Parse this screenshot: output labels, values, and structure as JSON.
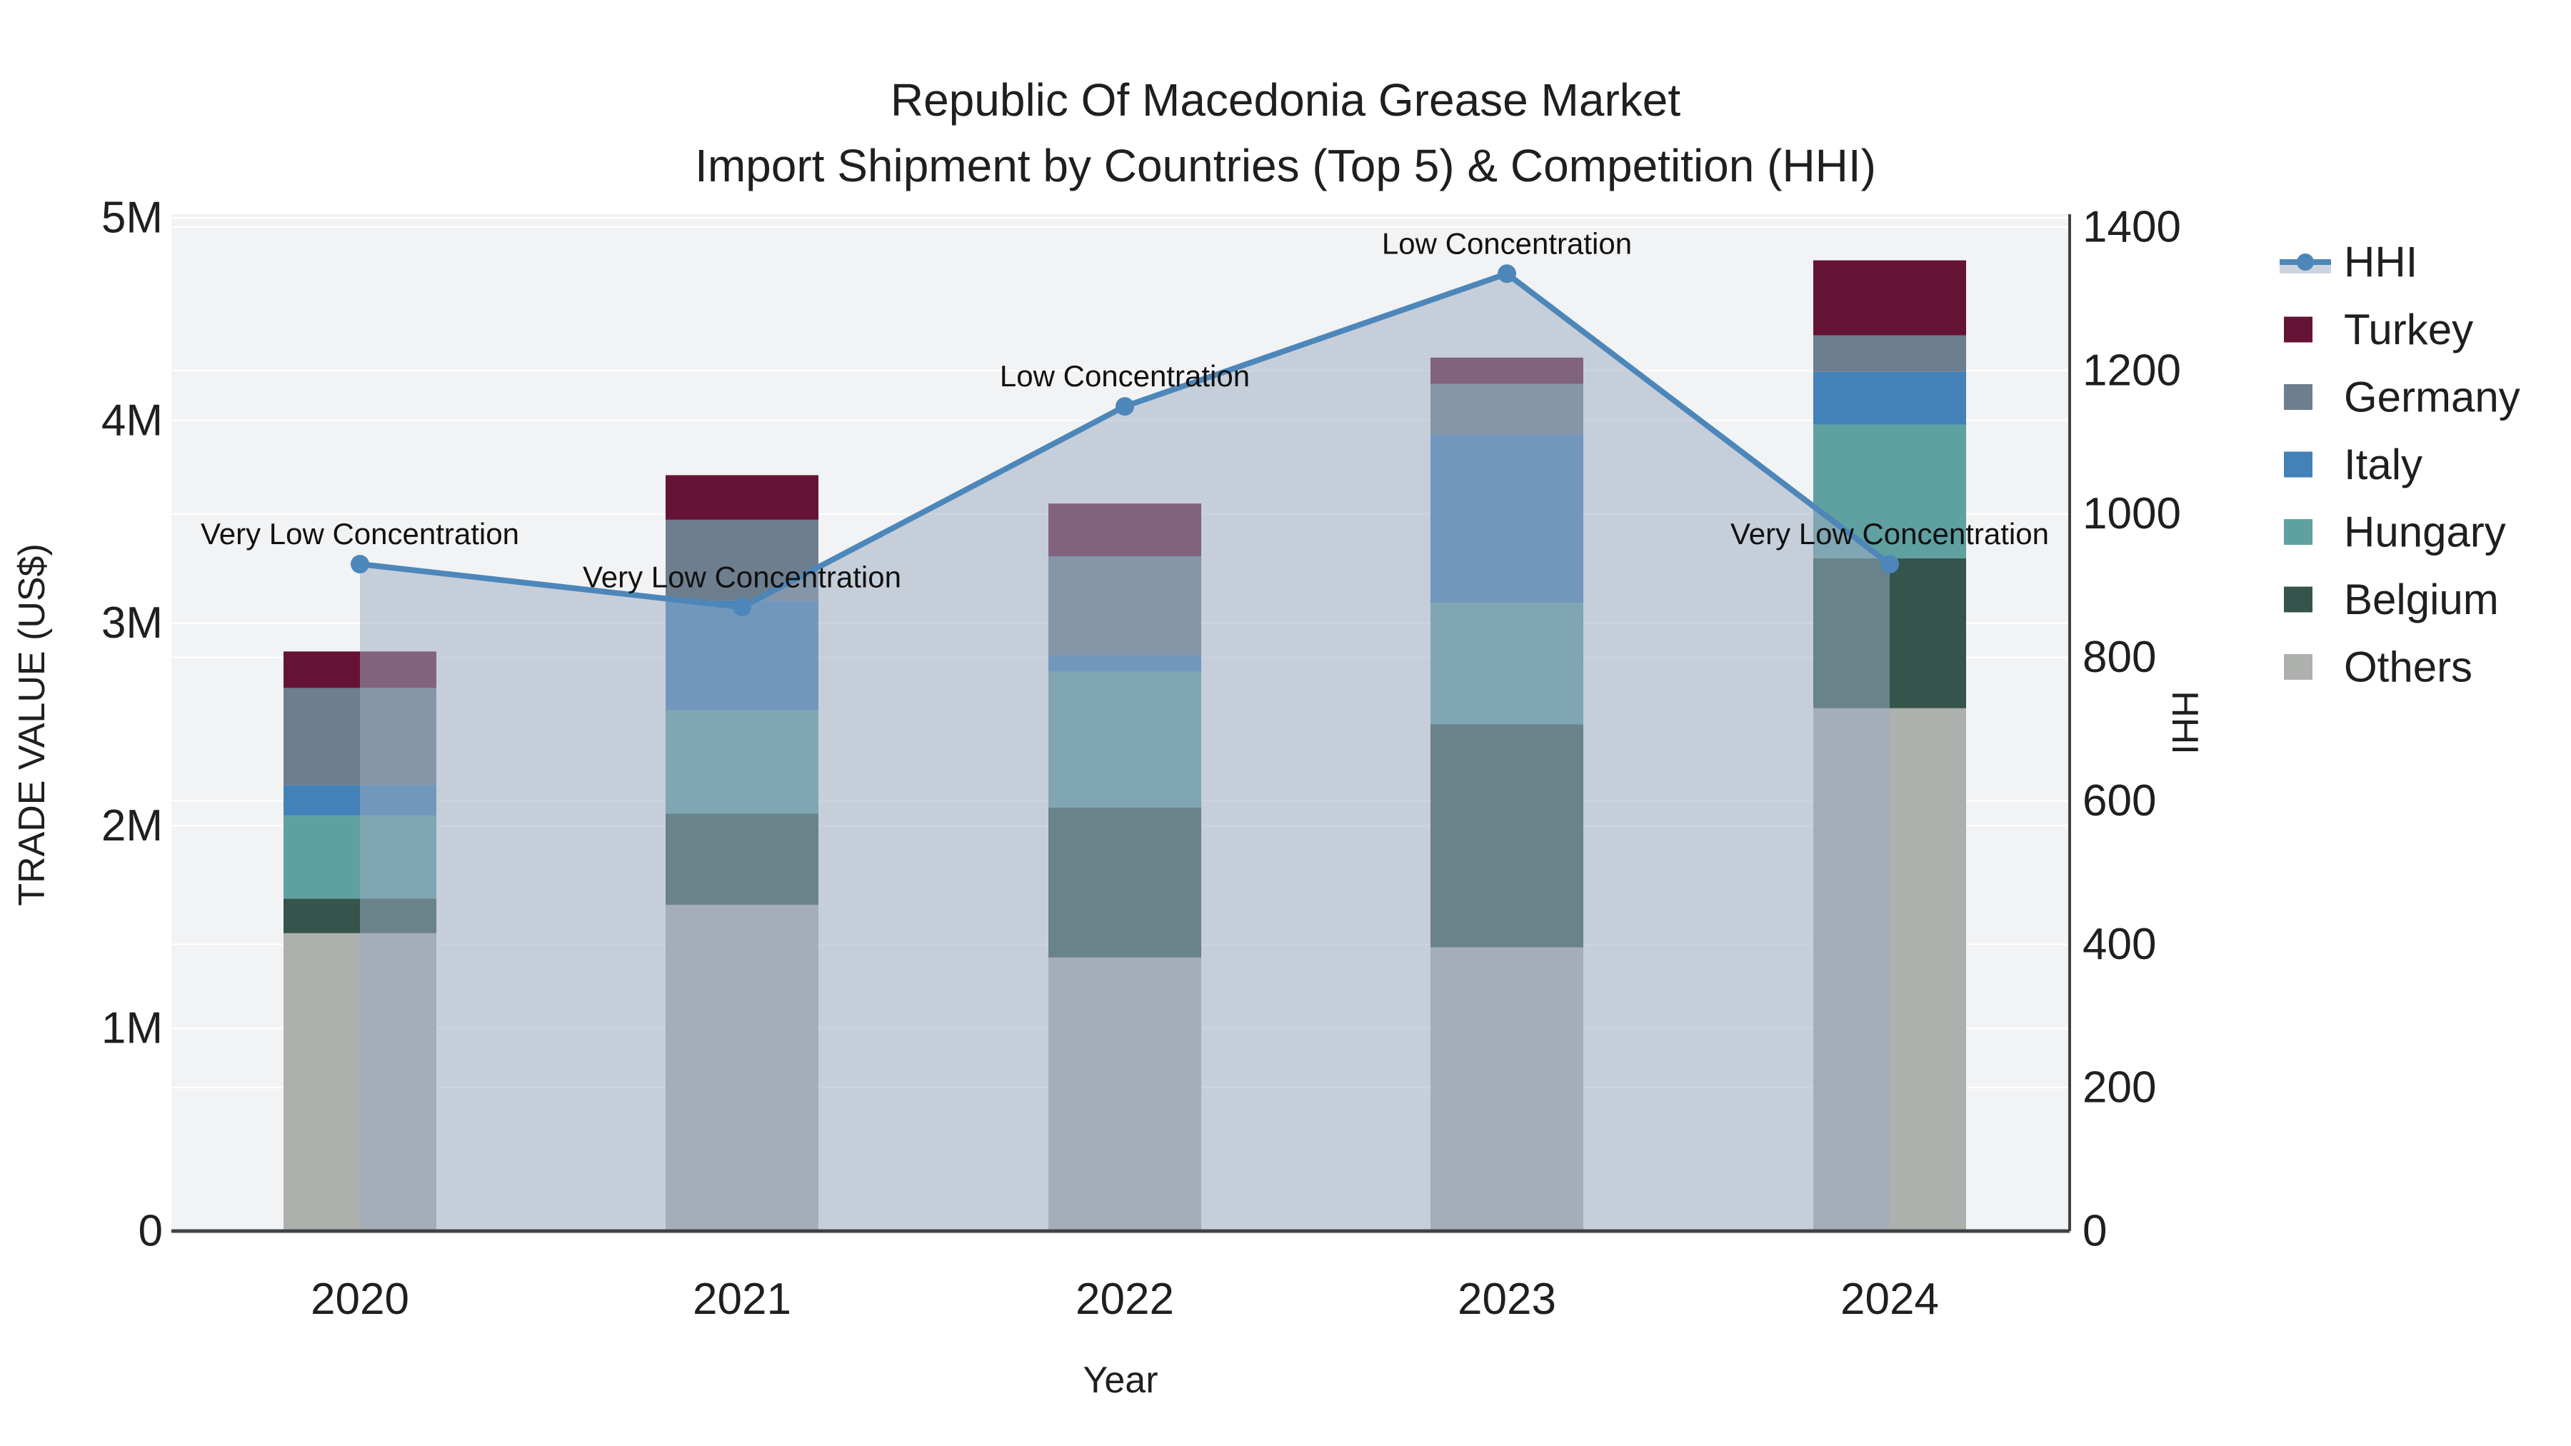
{
  "title": {
    "line1": "Republic Of Macedonia Grease Market",
    "line2": "Import Shipment by Countries (Top 5) & Competition (HHI)"
  },
  "axes": {
    "x_title": "Year",
    "y_left_title": "TRADE VALUE (US$)",
    "y_right_title": "HHI",
    "y_left_tick_labels": [
      "0",
      "1M",
      "2M",
      "3M",
      "4M",
      "5M"
    ],
    "y_right_tick_labels": [
      "0",
      "200",
      "400",
      "600",
      "800",
      "1000",
      "1200",
      "1400"
    ],
    "x_tick_labels": [
      "2020",
      "2021",
      "2022",
      "2023",
      "2024"
    ]
  },
  "colors": {
    "plot_background": "#f2f3f4",
    "figure_background": "#ffffff",
    "gridline": "#ffffff",
    "spine": "#3f4245",
    "hhi_line": "#4d87ba",
    "hhi_area_fill": "rgba(158,172,193,0.52)",
    "text": "#1f1f1f"
  },
  "chart_data": {
    "type": "bar",
    "subtype": "stacked-bars-with-line-overlay",
    "categories": [
      "2020",
      "2021",
      "2022",
      "2023",
      "2024"
    ],
    "bar_unit": "US$ millions (approx, read from axis)",
    "stack_order_bottom_to_top": [
      "Others",
      "Belgium",
      "Hungary",
      "Italy",
      "Germany",
      "Turkey"
    ],
    "series": [
      {
        "name": "Others",
        "color": "#aeb0ae",
        "values": [
          1.47,
          1.61,
          1.35,
          1.4,
          2.58
        ]
      },
      {
        "name": "Belgium",
        "color": "#34544c",
        "values": [
          0.17,
          0.45,
          0.74,
          1.1,
          0.74
        ]
      },
      {
        "name": "Hungary",
        "color": "#5fa0a1",
        "values": [
          0.41,
          0.51,
          0.67,
          0.6,
          0.66
        ]
      },
      {
        "name": "Italy",
        "color": "#4381b8",
        "values": [
          0.15,
          0.54,
          0.08,
          0.83,
          0.26
        ]
      },
      {
        "name": "Germany",
        "color": "#6d7e8e",
        "values": [
          0.48,
          0.4,
          0.49,
          0.25,
          0.18
        ]
      },
      {
        "name": "Turkey",
        "color": "#651335",
        "values": [
          0.18,
          0.22,
          0.26,
          0.13,
          0.37
        ]
      }
    ],
    "bar_totals": [
      2.86,
      3.73,
      3.59,
      4.31,
      4.79
    ],
    "line": {
      "name": "HHI",
      "color": "#4d87ba",
      "values": [
        930,
        870,
        1150,
        1335,
        930
      ],
      "annotations": [
        "Very Low Concentration",
        "Very Low Concentration",
        "Low Concentration",
        "Low Concentration",
        "Very Low Concentration"
      ]
    },
    "legend_order_top_to_bottom": [
      "HHI",
      "Turkey",
      "Germany",
      "Italy",
      "Hungary",
      "Belgium",
      "Others"
    ],
    "ylim_left_musd": [
      0,
      5
    ],
    "ylim_right_hhi": [
      0,
      1400
    ],
    "grid": "horizontal gridlines for both axes (1M steps left, 200 steps right)",
    "legend_position": "outside right, top"
  }
}
